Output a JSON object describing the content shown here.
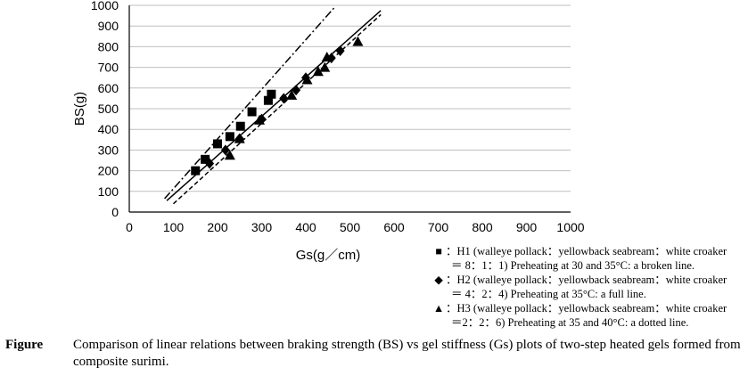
{
  "chart_data": {
    "type": "scatter",
    "title": "",
    "xlabel": "Gs(g／cm)",
    "ylabel": "BS(g)",
    "xlim": [
      0,
      1000
    ],
    "ylim": [
      0,
      1000
    ],
    "x_ticks": [
      0,
      100,
      200,
      300,
      400,
      500,
      600,
      700,
      800,
      900,
      1000
    ],
    "y_ticks": [
      0,
      100,
      200,
      300,
      400,
      500,
      600,
      700,
      800,
      900,
      1000
    ],
    "grid": "horizontal",
    "series": [
      {
        "name": "H1",
        "marker": "square",
        "line_style": "dash-dot",
        "points": [
          [
            150,
            200
          ],
          [
            172,
            255
          ],
          [
            200,
            330
          ],
          [
            228,
            365
          ],
          [
            252,
            415
          ],
          [
            278,
            485
          ],
          [
            315,
            540
          ],
          [
            322,
            570
          ]
        ],
        "fit_line": [
          [
            80,
            65
          ],
          [
            465,
            990
          ]
        ]
      },
      {
        "name": "H2",
        "marker": "diamond",
        "line_style": "solid",
        "points": [
          [
            182,
            235
          ],
          [
            218,
            300
          ],
          [
            250,
            355
          ],
          [
            300,
            450
          ],
          [
            350,
            550
          ],
          [
            378,
            590
          ],
          [
            400,
            650
          ],
          [
            458,
            745
          ],
          [
            478,
            780
          ]
        ],
        "fit_line": [
          [
            85,
            55
          ],
          [
            570,
            975
          ]
        ]
      },
      {
        "name": "H3",
        "marker": "triangle",
        "line_style": "dotted",
        "points": [
          [
            228,
            275
          ],
          [
            250,
            355
          ],
          [
            295,
            445
          ],
          [
            368,
            565
          ],
          [
            403,
            640
          ],
          [
            428,
            680
          ],
          [
            443,
            700
          ],
          [
            448,
            750
          ],
          [
            518,
            825
          ]
        ],
        "fit_line": [
          [
            100,
            40
          ],
          [
            570,
            955
          ]
        ]
      }
    ],
    "legend": [
      {
        "symbol": "■",
        "line1": "：H1 (walleye pollack：yellowback seabream：white croaker",
        "line2": "＝ 8：1：1)  Preheating at 30 and 35°C: a broken line."
      },
      {
        "symbol": "◆",
        "line1": "：H2 (walleye pollack：yellowback seabream：white croaker",
        "line2": "＝ 4：2：4)  Preheating at 35°C: a full line."
      },
      {
        "symbol": "▲",
        "line1": "：H3 (walleye pollack：yellowback seabream：white croaker",
        "line2": "＝2：2：6)  Preheating at 35 and 40°C: a dotted line."
      }
    ],
    "legend_position": "bottom-right"
  },
  "caption": {
    "label": "Figure",
    "text": "Comparison of linear relations between braking strength (BS) vs gel stiffness (Gs) plots of two-step heated gels formed from composite surimi."
  }
}
